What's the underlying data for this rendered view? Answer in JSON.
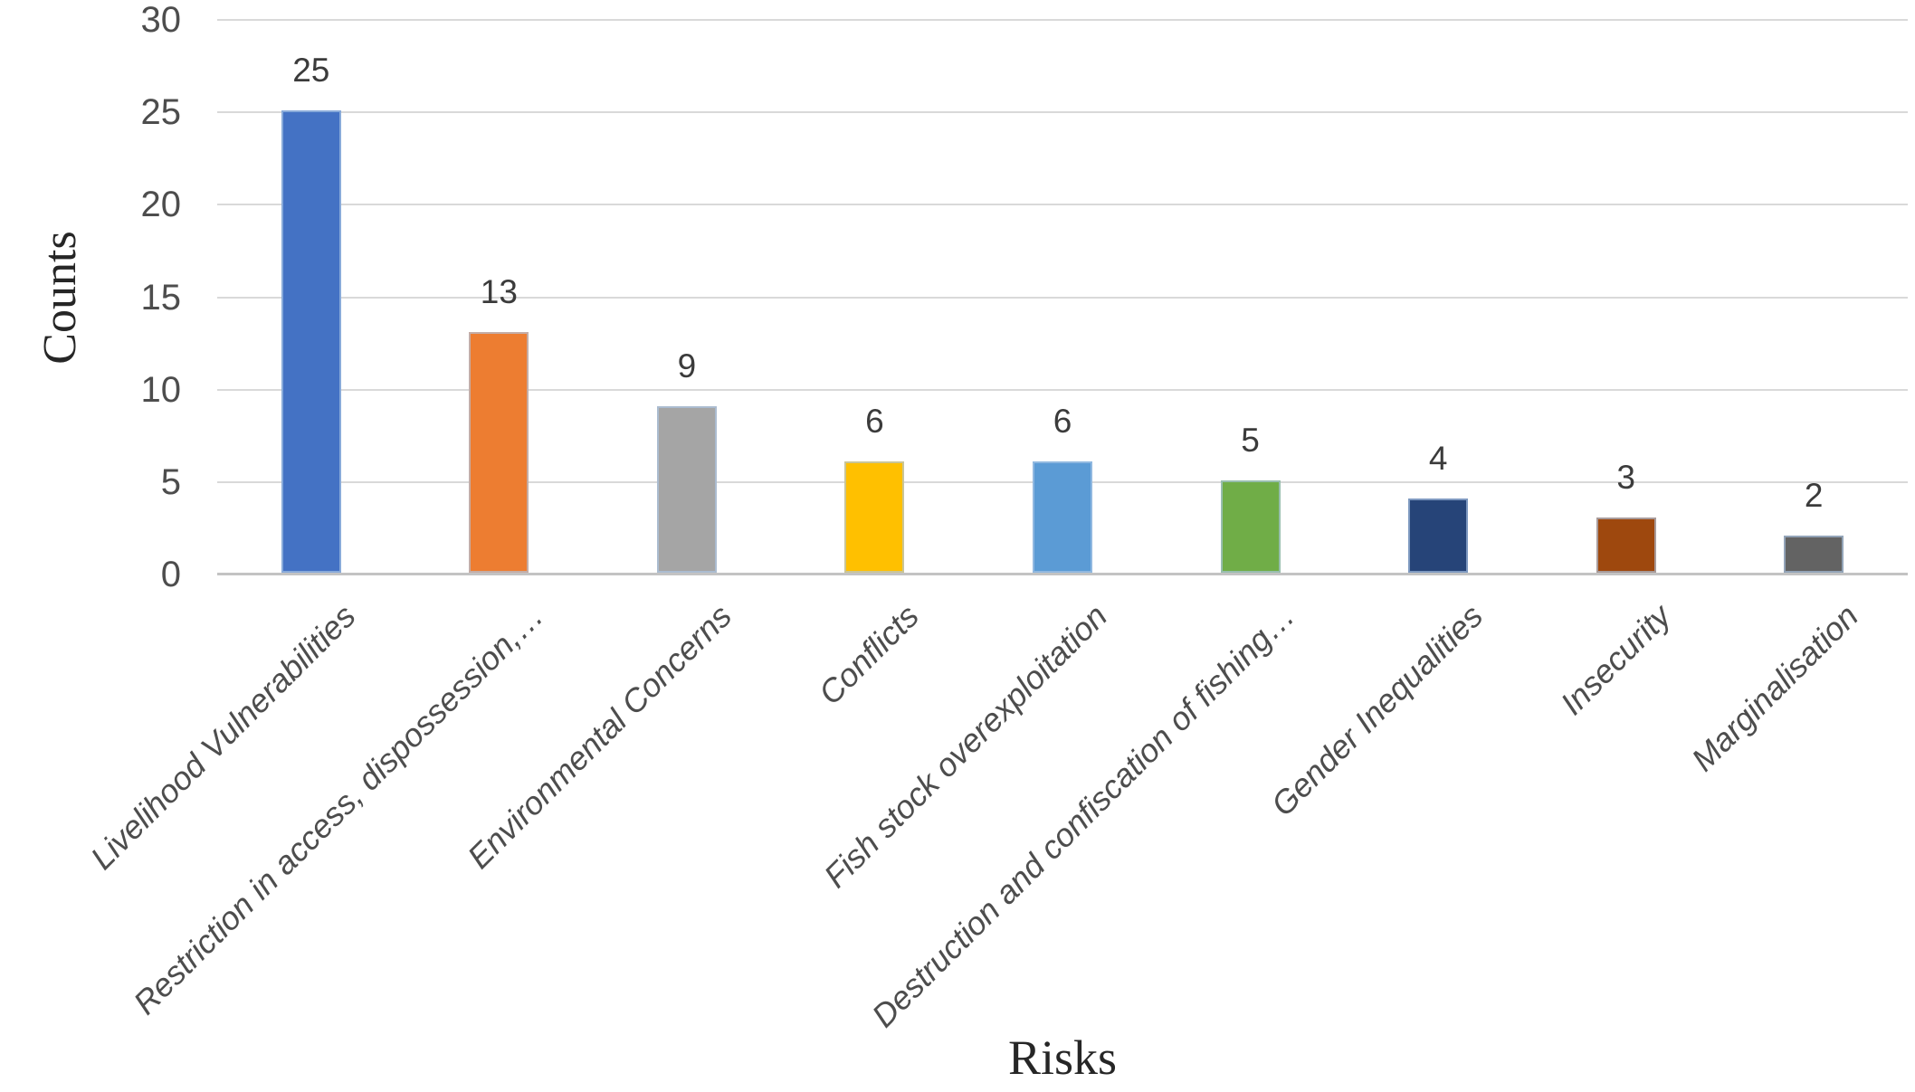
{
  "chart_data": {
    "type": "bar",
    "title": "",
    "xlabel": "Risks",
    "ylabel": "Counts",
    "categories": [
      "Livelihood Vulnerabilities",
      "Restriction in access, dispossession,…",
      "Environmental Concerns",
      "Conflicts",
      "Fish stock overexploitation",
      "Destruction and confiscation of fishing…",
      "Gender Inequalities",
      "Insecurity",
      "Marginalisation"
    ],
    "values": [
      25,
      13,
      9,
      6,
      6,
      5,
      4,
      3,
      2
    ],
    "data_labels": [
      "25",
      "13",
      "9",
      "6",
      "6",
      "5",
      "4",
      "3",
      "2"
    ],
    "bar_colors": [
      "#4472C4",
      "#ED7D31",
      "#A5A5A5",
      "#FFC000",
      "#5B9BD5",
      "#70AD47",
      "#264478",
      "#9E480E",
      "#636363"
    ],
    "ylim": [
      0,
      30
    ],
    "yticks": [
      "0",
      "5",
      "10",
      "15",
      "20",
      "25",
      "30"
    ],
    "grid": "horizontal",
    "legend": "none",
    "gridline_color": "#D9D9D9",
    "axis_line_color": "#C3C3C3",
    "tick_text_color": "#4d4d4d",
    "label_text_color": "#3b3b3b"
  }
}
